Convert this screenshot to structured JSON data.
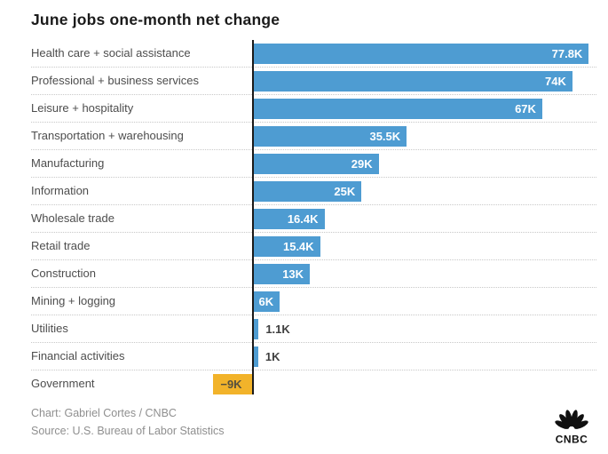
{
  "title": "June jobs one-month net change",
  "chart_data": {
    "type": "bar",
    "orientation": "horizontal",
    "title": "June jobs one-month net change",
    "unit": "thousands of jobs (K)",
    "categories": [
      "Health care + social assistance",
      "Professional + business services",
      "Leisure + hospitality",
      "Transportation + warehousing",
      "Manufacturing",
      "Information",
      "Wholesale trade",
      "Retail trade",
      "Construction",
      "Mining + logging",
      "Utilities",
      "Financial activities",
      "Government"
    ],
    "values": [
      77.8,
      74,
      67,
      35.5,
      29,
      25,
      16.4,
      15.4,
      13,
      6,
      1.1,
      1,
      -9
    ],
    "value_labels": [
      "77.8K",
      "74K",
      "67K",
      "35.5K",
      "29K",
      "25K",
      "16.4K",
      "15.4K",
      "13K",
      "6K",
      "1.1K",
      "1K",
      "−9K"
    ],
    "xlim": [
      -9,
      80
    ],
    "grid": "dotted horizontal row separators",
    "legend": "none",
    "bar_color_positive": "#4E9CD2",
    "bar_color_negative": "#F2B32A",
    "value_label_color_inside": "#ffffff",
    "value_label_color_outside": "#3f3f3f",
    "baseline_axis_color": "#1a1a1a"
  },
  "footer": {
    "chart_credit": "Chart: Gabriel Cortes / CNBC",
    "source": "Source: U.S. Bureau of Labor Statistics"
  },
  "logo": {
    "name": "CNBC",
    "text": "CNBC"
  }
}
